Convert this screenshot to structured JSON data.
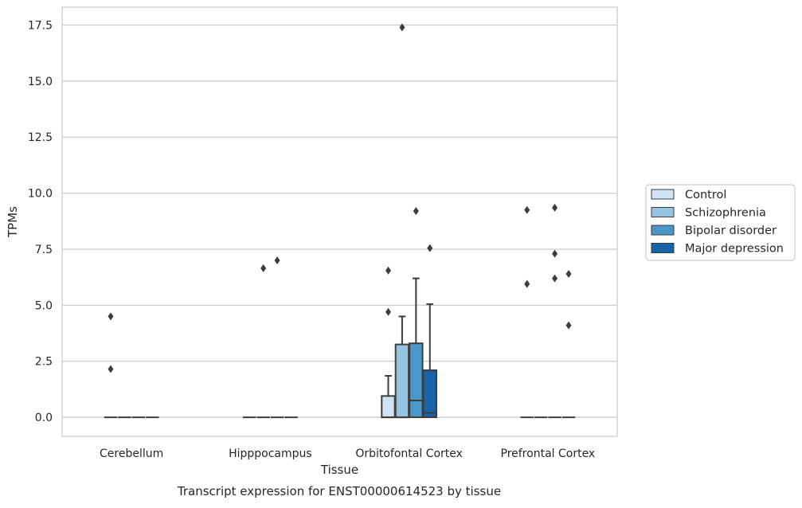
{
  "chart_data": {
    "type": "box",
    "xlabel": "Tissue",
    "ylabel": "TPMs",
    "caption": "Transcript expression for ENST00000614523 by tissue",
    "ylim": [
      -0.85,
      18.3
    ],
    "yticks": [
      0.0,
      2.5,
      5.0,
      7.5,
      10.0,
      12.5,
      15.0,
      17.5
    ],
    "ytick_labels": [
      "0.0",
      "2.5",
      "5.0",
      "7.5",
      "10.0",
      "12.5",
      "15.0",
      "17.5"
    ],
    "categories": [
      "Cerebellum",
      "Hipppocampus",
      "Orbitofontal Cortex",
      "Prefrontal Cortex"
    ],
    "grid": "horizontal",
    "legend_position": "right, outside plot",
    "series": [
      {
        "name": "Control",
        "color": "#d0e1f2",
        "boxes": [
          {
            "q1": 0,
            "median": 0,
            "q3": 0,
            "whisker_low": 0,
            "whisker_high": 0,
            "outliers": [
              4.5,
              2.15
            ]
          },
          {
            "q1": 0,
            "median": 0,
            "q3": 0,
            "whisker_low": 0,
            "whisker_high": 0,
            "outliers": []
          },
          {
            "q1": 0,
            "median": 0,
            "q3": 0.95,
            "whisker_low": 0,
            "whisker_high": 1.85,
            "outliers": [
              6.55,
              4.7
            ]
          },
          {
            "q1": 0,
            "median": 0,
            "q3": 0,
            "whisker_low": 0,
            "whisker_high": 0,
            "outliers": [
              9.25,
              5.95
            ]
          }
        ]
      },
      {
        "name": "Schizophrenia",
        "color": "#94c4df",
        "boxes": [
          {
            "q1": 0,
            "median": 0,
            "q3": 0,
            "whisker_low": 0,
            "whisker_high": 0,
            "outliers": []
          },
          {
            "q1": 0,
            "median": 0,
            "q3": 0,
            "whisker_low": 0,
            "whisker_high": 0,
            "outliers": [
              6.65
            ]
          },
          {
            "q1": 0,
            "median": 0,
            "q3": 3.25,
            "whisker_low": 0,
            "whisker_high": 4.5,
            "outliers": [
              17.4
            ]
          },
          {
            "q1": 0,
            "median": 0,
            "q3": 0,
            "whisker_low": 0,
            "whisker_high": 0,
            "outliers": []
          }
        ]
      },
      {
        "name": "Bipolar disorder",
        "color": "#4a98c9",
        "boxes": [
          {
            "q1": 0,
            "median": 0,
            "q3": 0,
            "whisker_low": 0,
            "whisker_high": 0,
            "outliers": []
          },
          {
            "q1": 0,
            "median": 0,
            "q3": 0,
            "whisker_low": 0,
            "whisker_high": 0,
            "outliers": [
              7.0
            ]
          },
          {
            "q1": 0,
            "median": 0.75,
            "q3": 3.3,
            "whisker_low": 0,
            "whisker_high": 6.2,
            "outliers": [
              9.2
            ]
          },
          {
            "q1": 0,
            "median": 0,
            "q3": 0,
            "whisker_low": 0,
            "whisker_high": 0,
            "outliers": [
              9.35,
              7.3,
              6.2
            ]
          }
        ]
      },
      {
        "name": "Major depression",
        "color": "#1764ab",
        "boxes": [
          {
            "q1": 0,
            "median": 0,
            "q3": 0,
            "whisker_low": 0,
            "whisker_high": 0,
            "outliers": []
          },
          {
            "q1": 0,
            "median": 0,
            "q3": 0,
            "whisker_low": 0,
            "whisker_high": 0,
            "outliers": []
          },
          {
            "q1": 0,
            "median": 0.2,
            "q3": 2.1,
            "whisker_low": 0,
            "whisker_high": 5.05,
            "outliers": [
              7.55
            ]
          },
          {
            "q1": 0,
            "median": 0,
            "q3": 0,
            "whisker_low": 0,
            "whisker_high": 0,
            "outliers": [
              6.4,
              4.1
            ]
          }
        ]
      }
    ]
  }
}
